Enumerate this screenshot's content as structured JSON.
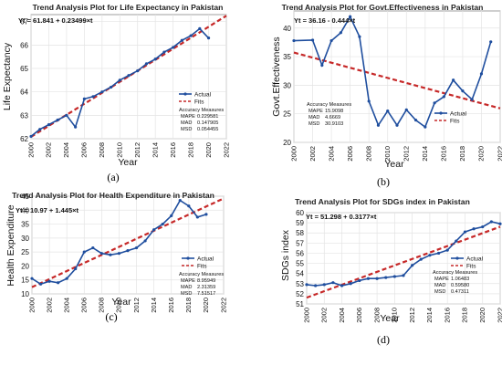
{
  "colors": {
    "actual": "#1f4e9e",
    "fits": "#c62828",
    "grid": "#e4e4e4",
    "frame": "#888888"
  },
  "chart_data": [
    {
      "id": "a",
      "type": "line",
      "caption": "(a)",
      "title": "Trend Analysis Plot for Life Expectancy in Pakistan",
      "equation": "Yt = 61.841 + 0.23499×t",
      "xlabel": "Year",
      "ylabel": "Life Expectancy",
      "x": [
        2000,
        2001,
        2002,
        2003,
        2004,
        2005,
        2006,
        2007,
        2008,
        2009,
        2010,
        2011,
        2012,
        2013,
        2014,
        2015,
        2016,
        2017,
        2018,
        2019,
        2020
      ],
      "xticks": [
        "2000",
        "2002",
        "2004",
        "2006",
        "2008",
        "2010",
        "2012",
        "2014",
        "2016",
        "2018",
        "2020",
        "2022"
      ],
      "ylim": [
        62,
        67.3
      ],
      "yticks": [
        62,
        63,
        64,
        65,
        66,
        67
      ],
      "series": [
        {
          "name": "Actual",
          "values": [
            62.1,
            62.4,
            62.6,
            62.8,
            63.0,
            62.5,
            63.7,
            63.8,
            64.0,
            64.2,
            64.5,
            64.7,
            64.9,
            65.2,
            65.4,
            65.7,
            65.9,
            66.2,
            66.4,
            66.7,
            66.3
          ]
        },
        {
          "name": "Fits",
          "x": [
            2000,
            2022
          ],
          "values": [
            62.08,
            67.25
          ]
        }
      ],
      "legend_position": "lower-right",
      "accuracy": {
        "title": "Accuracy Measures",
        "rows": [
          [
            "MAPE",
            "0.229581"
          ],
          [
            "MAD",
            "0.147905"
          ],
          [
            "MSD",
            "0.054455"
          ]
        ]
      }
    },
    {
      "id": "b",
      "type": "line",
      "caption": "(b)",
      "title": "Trend Analysis Plot for Govt.Effectiveness in Pakistan",
      "equation": "Yt = 36.16 - 0.444×t",
      "xlabel": "Year",
      "ylabel": "Govt.Effectiveness",
      "x": [
        2000,
        2002,
        2003,
        2004,
        2005,
        2006,
        2007,
        2008,
        2009,
        2010,
        2011,
        2012,
        2013,
        2014,
        2015,
        2016,
        2017,
        2018,
        2019,
        2020,
        2021
      ],
      "xticks": [
        "2000",
        "2002",
        "2004",
        "2006",
        "2008",
        "2010",
        "2012",
        "2014",
        "2016",
        "2018",
        "2020",
        "2022"
      ],
      "ylim": [
        20,
        43
      ],
      "yticks": [
        20,
        25,
        30,
        35,
        40
      ],
      "series": [
        {
          "name": "Actual",
          "values": [
            37.8,
            37.9,
            33.5,
            37.8,
            39.2,
            42.0,
            38.5,
            27.2,
            23.0,
            25.5,
            23.0,
            25.7,
            23.9,
            22.7,
            26.9,
            28.0,
            30.9,
            29.0,
            27.5,
            32.0,
            37.6
          ]
        },
        {
          "name": "Fits",
          "x": [
            2000,
            2022
          ],
          "values": [
            35.72,
            25.95
          ]
        }
      ],
      "legend_position": "lower-right",
      "accuracy": {
        "title": "Accuracy Measures",
        "rows": [
          [
            "MAPE",
            "15.9098"
          ],
          [
            "MAD",
            "4.6669"
          ],
          [
            "MSD",
            "30.9103"
          ]
        ]
      }
    },
    {
      "id": "c",
      "type": "line",
      "caption": "(c)",
      "title": "Trend Analysis Plot for Health Expenditure in Pakistan",
      "equation": "Yt = 10.97 + 1.445×t",
      "xlabel": "Year",
      "ylabel": "Health Expenditure",
      "x": [
        2000,
        2001,
        2002,
        2003,
        2004,
        2005,
        2006,
        2007,
        2008,
        2009,
        2010,
        2011,
        2012,
        2013,
        2014,
        2015,
        2016,
        2017,
        2018,
        2019,
        2020
      ],
      "xticks": [
        "2000",
        "2002",
        "2004",
        "2006",
        "2008",
        "2010",
        "2012",
        "2014",
        "2016",
        "2018",
        "2020",
        "2022"
      ],
      "ylim": [
        10,
        45
      ],
      "yticks": [
        10,
        15,
        20,
        25,
        30,
        35,
        40,
        45
      ],
      "series": [
        {
          "name": "Actual",
          "values": [
            15.5,
            13.5,
            14.5,
            14.0,
            15.5,
            19.0,
            25.0,
            26.5,
            24.5,
            24.0,
            24.5,
            25.5,
            26.5,
            29.0,
            33.0,
            35.0,
            38.0,
            43.5,
            41.5,
            37.5,
            38.5
          ]
        },
        {
          "name": "Fits",
          "x": [
            2000,
            2022
          ],
          "values": [
            12.4,
            44.2
          ]
        }
      ],
      "legend_position": "lower-right",
      "accuracy": {
        "title": "Accuracy Measures",
        "rows": [
          [
            "MAPE",
            "8.95949"
          ],
          [
            "MAD",
            "2.31359"
          ],
          [
            "MSD",
            "7.51517"
          ]
        ]
      }
    },
    {
      "id": "d",
      "type": "line",
      "caption": "(d)",
      "title": "Trend Analysis Plot for SDGs index in Pakistan",
      "equation": "Yt = 51.298 + 0.3177×t",
      "xlabel": "Year",
      "ylabel": "SDGs index",
      "x": [
        2000,
        2001,
        2002,
        2003,
        2004,
        2005,
        2006,
        2007,
        2008,
        2009,
        2010,
        2011,
        2012,
        2013,
        2014,
        2015,
        2016,
        2017,
        2018,
        2019,
        2020,
        2021,
        2022
      ],
      "xticks": [
        "2000",
        "2002",
        "2004",
        "2006",
        "2008",
        "2010",
        "2012",
        "2014",
        "2016",
        "2018",
        "2020",
        "2022"
      ],
      "ylim": [
        51,
        60
      ],
      "yticks": [
        51,
        52,
        53,
        54,
        55,
        56,
        57,
        58,
        59,
        60
      ],
      "series": [
        {
          "name": "Actual",
          "values": [
            52.9,
            52.8,
            52.9,
            53.1,
            52.8,
            53.0,
            53.3,
            53.5,
            53.5,
            53.6,
            53.7,
            53.8,
            54.8,
            55.4,
            55.8,
            56.0,
            56.3,
            57.2,
            58.1,
            58.4,
            58.6,
            59.1,
            58.9
          ]
        },
        {
          "name": "Fits",
          "x": [
            2000,
            2022
          ],
          "values": [
            51.62,
            58.61
          ]
        }
      ],
      "legend_position": "lower-right",
      "accuracy": {
        "title": "Accuracy Measures",
        "rows": [
          [
            "MAPE",
            "1.06483"
          ],
          [
            "MAD",
            "0.59580"
          ],
          [
            "MSD",
            "0.47311"
          ]
        ]
      }
    }
  ]
}
